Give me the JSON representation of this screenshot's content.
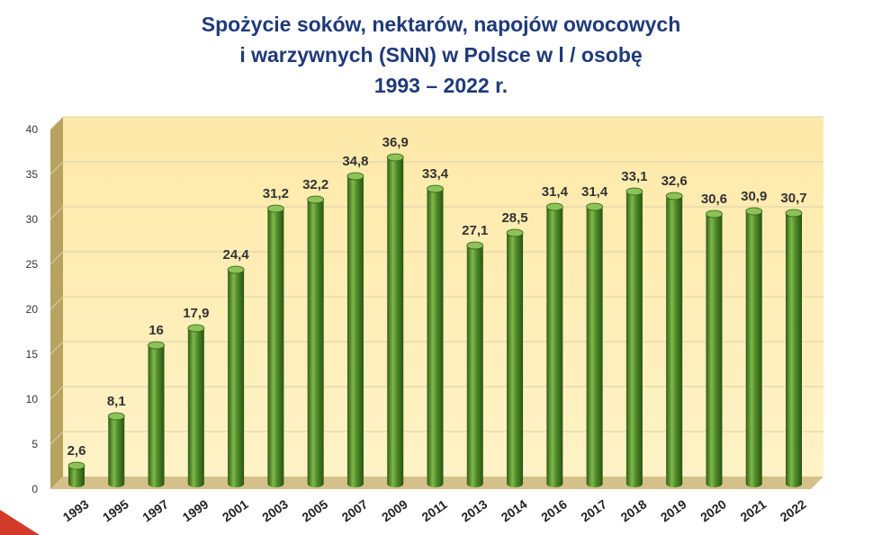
{
  "chart_data": {
    "type": "bar",
    "title": [
      "Spożycie soków, nektarów, napojów owocowych",
      "i warzywnych (SNN) w Polsce w l / osobę",
      "1993 – 2022 r."
    ],
    "categories": [
      "1993",
      "1995",
      "1997",
      "1999",
      "2001",
      "2003",
      "2005",
      "2007",
      "2009",
      "2011",
      "2013",
      "2014",
      "2016",
      "2017",
      "2018",
      "2019",
      "2020",
      "2021",
      "2022"
    ],
    "values": [
      2.6,
      8.1,
      16,
      17.9,
      24.4,
      31.2,
      32.2,
      34.8,
      36.9,
      33.4,
      27.1,
      28.5,
      31.4,
      31.4,
      33.1,
      32.6,
      30.6,
      30.9,
      30.7
    ],
    "data_labels": [
      "2,6",
      "8,1",
      "16",
      "17,9",
      "24,4",
      "31,2",
      "32,2",
      "34,8",
      "36,9",
      "33,4",
      "27,1",
      "28,5",
      "31,4",
      "31,4",
      "33,1",
      "32,6",
      "30,6",
      "30,9",
      "30,7"
    ],
    "ylim": [
      0,
      40
    ],
    "yticks": [
      0,
      5,
      10,
      15,
      20,
      25,
      30,
      35,
      40
    ],
    "grid": true,
    "legend": "none",
    "colors": {
      "bar_main": "#4e8a2a",
      "bar_dark": "#2f5e14",
      "bar_light": "#7fb84a",
      "bar_top": "#8cc257",
      "plot_bg": "#fde9a8",
      "plot_bg_light": "#fff2c6",
      "side_wall": "#b8a260",
      "floor": "#d4c189",
      "grid": "#d9d0ad",
      "title": "#1f3a7a",
      "accent_corner": "#d23b2a"
    }
  }
}
